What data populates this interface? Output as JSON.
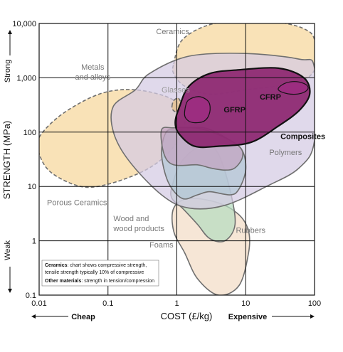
{
  "chart_data": {
    "type": "area",
    "title": "",
    "xlabel": "COST (£/kg)",
    "ylabel": "STRENGTH (MPa)",
    "x_scale": "log",
    "y_scale": "log",
    "xlim": [
      0.01,
      100
    ],
    "ylim": [
      0.1,
      10000
    ],
    "grid": true,
    "x_ticks": [
      "0.01",
      "0.1",
      "1",
      "10",
      "100"
    ],
    "y_ticks": [
      "0.1",
      "1",
      "10",
      "100",
      "1,000",
      "10,000"
    ],
    "x_axis_ends": {
      "low": "Cheap",
      "high": "Expensive"
    },
    "y_axis_ends": {
      "low": "Weak",
      "high": "Strong"
    },
    "regions": [
      {
        "name": "Ceramics",
        "color": "#f7d79b",
        "style": "dashed",
        "outline": [
          [
            0.9,
            1800
          ],
          [
            1.2,
            5000
          ],
          [
            3,
            9500
          ],
          [
            10,
            11000
          ],
          [
            30,
            10500
          ],
          [
            70,
            8000
          ],
          [
            100,
            5000
          ],
          [
            100,
            1400
          ],
          [
            50,
            800
          ],
          [
            10,
            600
          ],
          [
            3,
            500
          ],
          [
            1.3,
            700
          ],
          [
            0.9,
            1200
          ]
        ]
      },
      {
        "name": "Porous Ceramics",
        "color": "#f7d79b",
        "style": "dashed",
        "outline": [
          [
            0.01,
            80
          ],
          [
            0.02,
            200
          ],
          [
            0.06,
            450
          ],
          [
            0.15,
            600
          ],
          [
            0.4,
            550
          ],
          [
            1,
            350
          ],
          [
            1.3,
            130
          ],
          [
            0.8,
            45
          ],
          [
            0.35,
            20
          ],
          [
            0.1,
            11
          ],
          [
            0.04,
            10
          ],
          [
            0.015,
            18
          ],
          [
            0.01,
            40
          ]
        ]
      },
      {
        "name": "Foams",
        "color": "#f2dcc6",
        "style": "solid",
        "outline": [
          [
            0.9,
            4
          ],
          [
            1.5,
            6
          ],
          [
            4,
            5
          ],
          [
            8,
            3
          ],
          [
            11,
            1.5
          ],
          [
            11,
            0.6
          ],
          [
            8,
            0.15
          ],
          [
            4,
            0.1
          ],
          [
            2,
            0.2
          ],
          [
            1.3,
            0.6
          ],
          [
            0.9,
            1.5
          ]
        ]
      },
      {
        "name": "Rubbers",
        "color": "#b6dcbf",
        "style": "solid",
        "outline": [
          [
            0.85,
            10
          ],
          [
            1.2,
            30
          ],
          [
            2.5,
            60
          ],
          [
            4,
            40
          ],
          [
            6,
            8
          ],
          [
            7,
            2
          ],
          [
            5,
            1
          ],
          [
            3,
            1.1
          ],
          [
            2,
            2
          ],
          [
            1.2,
            4
          ],
          [
            0.85,
            6
          ]
        ]
      },
      {
        "name": "Metals and alloys",
        "color": "#d4cbe3",
        "style": "solid",
        "outline": [
          [
            0.25,
            600
          ],
          [
            0.4,
            1200
          ],
          [
            1.5,
            2500
          ],
          [
            10,
            2800
          ],
          [
            60,
            2200
          ],
          [
            100,
            1500
          ],
          [
            100,
            70
          ],
          [
            60,
            22
          ],
          [
            20,
            10
          ],
          [
            5,
            4.5
          ],
          [
            1.5,
            4
          ],
          [
            0.6,
            7
          ],
          [
            0.2,
            30
          ],
          [
            0.12,
            100
          ],
          [
            0.12,
            300
          ]
        ]
      },
      {
        "name": "Wood and wood products",
        "color": "#b2c6d4",
        "style": "solid",
        "outline": [
          [
            0.7,
            100
          ],
          [
            1,
            110
          ],
          [
            2.5,
            120
          ],
          [
            6,
            70
          ],
          [
            9,
            45
          ],
          [
            10,
            20
          ],
          [
            8,
            9
          ],
          [
            6,
            7
          ],
          [
            3,
            8
          ],
          [
            2,
            7
          ],
          [
            1.2,
            6
          ],
          [
            0.75,
            12
          ],
          [
            0.6,
            40
          ]
        ]
      },
      {
        "name": "Polymers",
        "color": "#c4a3c0",
        "style": "solid",
        "outline": [
          [
            0.6,
            110
          ],
          [
            0.9,
            120
          ],
          [
            2,
            118
          ],
          [
            4,
            90
          ],
          [
            8,
            55
          ],
          [
            9,
            35
          ],
          [
            7,
            22
          ],
          [
            5,
            20
          ],
          [
            3,
            22
          ],
          [
            2,
            25
          ],
          [
            0.9,
            25
          ],
          [
            0.65,
            40
          ]
        ]
      },
      {
        "name": "Glasses",
        "color": "#e8c088",
        "style": "dashed",
        "outline": [
          [
            0.85,
            300
          ],
          [
            0.9,
            380
          ],
          [
            1.05,
            420
          ],
          [
            1.15,
            330
          ],
          [
            1.1,
            260
          ],
          [
            0.95,
            240
          ],
          [
            0.87,
            260
          ]
        ]
      },
      {
        "name": "Composites",
        "color": "#8e2a73",
        "style": "solid",
        "outline": [
          [
            1.1,
            300
          ],
          [
            1.5,
            700
          ],
          [
            3,
            1200
          ],
          [
            8,
            1400
          ],
          [
            30,
            1500
          ],
          [
            70,
            1000
          ],
          [
            85,
            500
          ],
          [
            60,
            250
          ],
          [
            30,
            130
          ],
          [
            12,
            65
          ],
          [
            4,
            55
          ],
          [
            1.8,
            55
          ],
          [
            1.1,
            90
          ],
          [
            0.95,
            150
          ]
        ]
      },
      {
        "name": "GFRP",
        "color": "#9c2d80",
        "style": "solid",
        "outline": [
          [
            1.3,
            240
          ],
          [
            1.45,
            380
          ],
          [
            2.1,
            450
          ],
          [
            2.9,
            360
          ],
          [
            3,
            230
          ],
          [
            2.5,
            160
          ],
          [
            1.7,
            150
          ],
          [
            1.35,
            180
          ]
        ]
      },
      {
        "name": "CFRP",
        "color": "#9c2d80",
        "style": "solid",
        "outline": [
          [
            30,
            650
          ],
          [
            38,
            800
          ],
          [
            55,
            850
          ],
          [
            75,
            750
          ],
          [
            80,
            620
          ],
          [
            65,
            520
          ],
          [
            45,
            500
          ],
          [
            32,
            560
          ]
        ]
      }
    ],
    "annotations": [
      {
        "name": "Ceramics",
        "x": 0.5,
        "y": 6400,
        "text": "Ceramics",
        "color": "#777777"
      },
      {
        "name": "Metals and alloys",
        "x": 0.06,
        "y": 1400,
        "text": "Metals\nand alloys",
        "color": "#777777"
      },
      {
        "name": "Glasses",
        "x": 0.6,
        "y": 540,
        "text": "Glasses",
        "color": "#999999"
      },
      {
        "name": "GFRP",
        "x": 4.8,
        "y": 230,
        "text": "GFRP",
        "color": "#111111",
        "small": true
      },
      {
        "name": "CFRP",
        "x": 16,
        "y": 400,
        "text": "CFRP",
        "color": "#111111",
        "small": true
      },
      {
        "name": "Composites",
        "x": 32,
        "y": 75,
        "text": "Composites",
        "color": "#111111"
      },
      {
        "name": "Polymers",
        "x": 22,
        "y": 38,
        "text": "Polymers",
        "color": "#777777"
      },
      {
        "name": "Porous Ceramics",
        "x": 0.013,
        "y": 4.5,
        "text": "Porous Ceramics",
        "color": "#777777"
      },
      {
        "name": "Wood and wood products",
        "x": 0.12,
        "y": 2.3,
        "text": "Wood and\nwood products",
        "color": "#777777"
      },
      {
        "name": "Rubbers",
        "x": 7.2,
        "y": 1.4,
        "text": "Rubbers",
        "color": "#777777"
      },
      {
        "name": "Foams",
        "x": 0.4,
        "y": 0.75,
        "text": "Foams",
        "color": "#777777"
      }
    ],
    "note": {
      "line1_bold": "Ceramics",
      "line1": ": chart shows compressive strength,",
      "line2": "tensile strength typically 10% of compressive",
      "line3_bold": "Other materials",
      "line3": ": strength in tension/compression"
    }
  }
}
